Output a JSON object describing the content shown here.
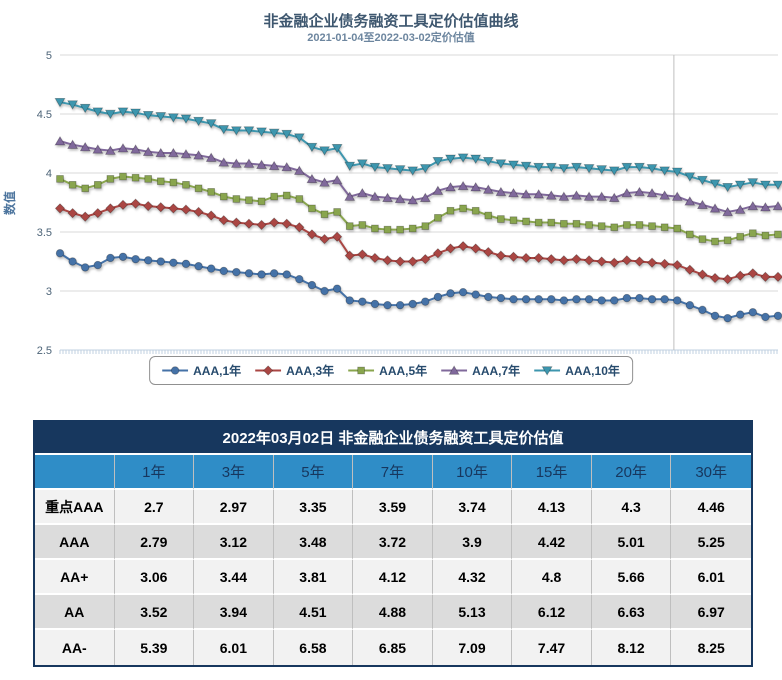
{
  "chart_data": {
    "type": "line",
    "title": "非金融企业债务融资工具定价估值曲线",
    "subtitle": "2021-01-04至2022-03-02定价估值",
    "ylabel": "数值",
    "xlabel": "",
    "ylim": [
      2.5,
      5
    ],
    "y_ticks": [
      "2.5",
      "3",
      "3.5",
      "4",
      "4.5",
      "5"
    ],
    "x_range": [
      "2021-01-04",
      "2022-03-02"
    ],
    "grid": true,
    "legend_position": "bottom",
    "plotline_x_fraction": 0.855,
    "series": [
      {
        "name": "AAA,1年",
        "color": "#4572A7",
        "marker": "circle",
        "values": [
          3.32,
          3.25,
          3.2,
          3.22,
          3.28,
          3.29,
          3.27,
          3.26,
          3.25,
          3.24,
          3.23,
          3.21,
          3.19,
          3.17,
          3.16,
          3.15,
          3.14,
          3.15,
          3.14,
          3.1,
          3.05,
          3.0,
          3.02,
          2.92,
          2.91,
          2.89,
          2.88,
          2.88,
          2.89,
          2.91,
          2.95,
          2.98,
          2.99,
          2.97,
          2.95,
          2.94,
          2.93,
          2.93,
          2.93,
          2.93,
          2.92,
          2.93,
          2.93,
          2.92,
          2.92,
          2.94,
          2.94,
          2.93,
          2.93,
          2.92,
          2.88,
          2.84,
          2.79,
          2.77,
          2.8,
          2.82,
          2.78,
          2.79
        ]
      },
      {
        "name": "AAA,3年",
        "color": "#AA4643",
        "marker": "diamond",
        "values": [
          3.7,
          3.66,
          3.63,
          3.66,
          3.7,
          3.73,
          3.74,
          3.72,
          3.71,
          3.7,
          3.69,
          3.67,
          3.64,
          3.6,
          3.58,
          3.57,
          3.56,
          3.58,
          3.57,
          3.54,
          3.48,
          3.44,
          3.46,
          3.3,
          3.31,
          3.28,
          3.26,
          3.25,
          3.25,
          3.27,
          3.32,
          3.36,
          3.38,
          3.36,
          3.33,
          3.3,
          3.29,
          3.28,
          3.28,
          3.27,
          3.26,
          3.27,
          3.26,
          3.25,
          3.24,
          3.26,
          3.25,
          3.24,
          3.23,
          3.22,
          3.18,
          3.14,
          3.11,
          3.1,
          3.13,
          3.15,
          3.12,
          3.12
        ]
      },
      {
        "name": "AAA,5年",
        "color": "#89A54E",
        "marker": "square",
        "values": [
          3.95,
          3.9,
          3.87,
          3.9,
          3.95,
          3.97,
          3.96,
          3.95,
          3.93,
          3.92,
          3.9,
          3.87,
          3.84,
          3.8,
          3.78,
          3.77,
          3.76,
          3.8,
          3.81,
          3.78,
          3.7,
          3.65,
          3.67,
          3.55,
          3.56,
          3.53,
          3.52,
          3.52,
          3.53,
          3.55,
          3.62,
          3.68,
          3.7,
          3.68,
          3.64,
          3.61,
          3.6,
          3.59,
          3.58,
          3.58,
          3.57,
          3.57,
          3.56,
          3.55,
          3.54,
          3.56,
          3.56,
          3.55,
          3.54,
          3.53,
          3.48,
          3.44,
          3.42,
          3.43,
          3.46,
          3.49,
          3.47,
          3.48
        ]
      },
      {
        "name": "AAA,7年",
        "color": "#80699B",
        "marker": "triangle",
        "values": [
          4.27,
          4.24,
          4.22,
          4.2,
          4.19,
          4.21,
          4.2,
          4.18,
          4.17,
          4.17,
          4.16,
          4.15,
          4.13,
          4.09,
          4.08,
          4.08,
          4.07,
          4.06,
          4.05,
          4.02,
          3.95,
          3.92,
          3.94,
          3.8,
          3.83,
          3.8,
          3.79,
          3.78,
          3.77,
          3.79,
          3.85,
          3.88,
          3.89,
          3.88,
          3.86,
          3.84,
          3.83,
          3.82,
          3.82,
          3.81,
          3.8,
          3.81,
          3.8,
          3.8,
          3.79,
          3.83,
          3.84,
          3.83,
          3.81,
          3.8,
          3.76,
          3.73,
          3.7,
          3.67,
          3.69,
          3.72,
          3.71,
          3.72
        ]
      },
      {
        "name": "AAA,10年",
        "color": "#3D96AE",
        "marker": "triangle-down",
        "values": [
          4.6,
          4.58,
          4.55,
          4.52,
          4.5,
          4.52,
          4.51,
          4.49,
          4.48,
          4.47,
          4.46,
          4.44,
          4.42,
          4.37,
          4.36,
          4.36,
          4.35,
          4.34,
          4.33,
          4.3,
          4.22,
          4.19,
          4.21,
          4.06,
          4.08,
          4.05,
          4.04,
          4.03,
          4.02,
          4.04,
          4.1,
          4.12,
          4.13,
          4.12,
          4.1,
          4.08,
          4.07,
          4.06,
          4.05,
          4.05,
          4.04,
          4.05,
          4.04,
          4.03,
          4.02,
          4.05,
          4.05,
          4.04,
          4.02,
          4.01,
          3.97,
          3.94,
          3.91,
          3.88,
          3.9,
          3.92,
          3.9,
          3.9
        ]
      }
    ],
    "colors": {
      "title": "#3E576F",
      "subtitle": "#6D869F",
      "axis_title": "#4D759E",
      "tick_label": "#4D6478",
      "grid": "#D8D8D8",
      "axis_line": "#C0D0E0",
      "plotline": "#C0C0C0",
      "legend_text": "#274B6D",
      "legend_border": "#909090"
    }
  },
  "table": {
    "title": "2022年03月02日 非金融企业债务融资工具定价估值",
    "columns": [
      "",
      "1年",
      "3年",
      "5年",
      "7年",
      "10年",
      "15年",
      "20年",
      "30年"
    ],
    "rows": [
      {
        "label": "重点AAA",
        "values": [
          "2.7",
          "2.97",
          "3.35",
          "3.59",
          "3.74",
          "4.13",
          "4.3",
          "4.46"
        ]
      },
      {
        "label": "AAA",
        "values": [
          "2.79",
          "3.12",
          "3.48",
          "3.72",
          "3.9",
          "4.42",
          "5.01",
          "5.25"
        ]
      },
      {
        "label": "AA+",
        "values": [
          "3.06",
          "3.44",
          "3.81",
          "4.12",
          "4.32",
          "4.8",
          "5.66",
          "6.01"
        ]
      },
      {
        "label": "AA",
        "values": [
          "3.52",
          "3.94",
          "4.51",
          "4.88",
          "5.13",
          "6.12",
          "6.63",
          "6.97"
        ]
      },
      {
        "label": "AA-",
        "values": [
          "5.39",
          "6.01",
          "6.58",
          "6.85",
          "7.09",
          "7.47",
          "8.12",
          "8.25"
        ]
      }
    ],
    "colors": {
      "border": "#17375E",
      "title_bg": "#17375E",
      "title_text": "#FFFFFF",
      "header_bg": "#2F8DC7",
      "header_text": "#17375E",
      "row_light": "#F2F2F2",
      "row_dark": "#DCDCDC",
      "cell_border": "#BFBFBF"
    }
  }
}
